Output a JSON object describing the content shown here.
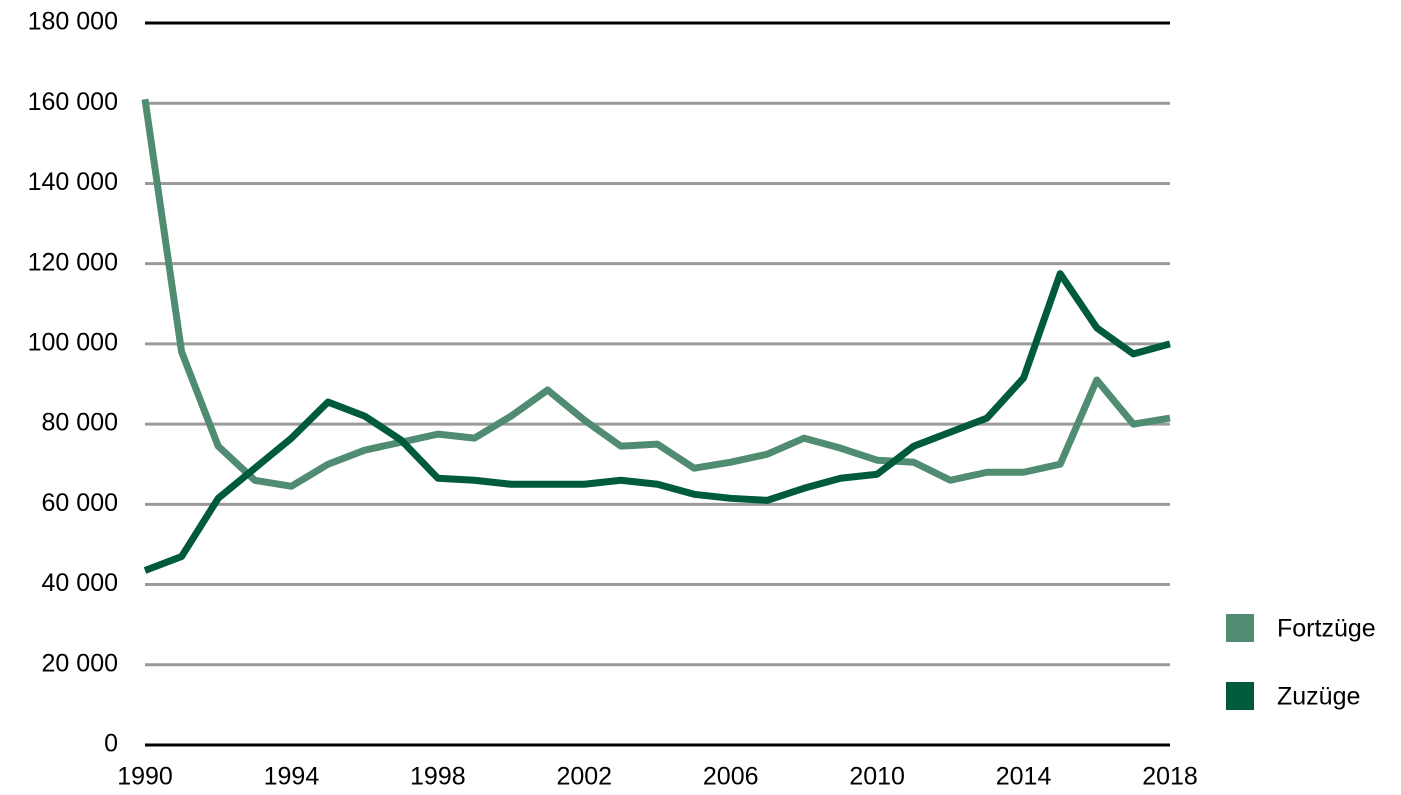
{
  "chart_data": {
    "type": "line",
    "x": [
      1990,
      1991,
      1992,
      1993,
      1994,
      1995,
      1996,
      1997,
      1998,
      1999,
      2000,
      2001,
      2002,
      2003,
      2004,
      2005,
      2006,
      2007,
      2008,
      2009,
      2010,
      2011,
      2012,
      2013,
      2014,
      2015,
      2016,
      2017,
      2018
    ],
    "series": [
      {
        "name": "Fortzüge",
        "color": "#4f8c72",
        "values": [
          161000,
          98000,
          74500,
          66000,
          64500,
          70000,
          73500,
          75500,
          77500,
          76500,
          82000,
          88500,
          81000,
          74500,
          75000,
          69000,
          70500,
          72500,
          76500,
          74000,
          71000,
          70500,
          66000,
          68000,
          68000,
          70000,
          91000,
          80000,
          81500
        ]
      },
      {
        "name": "Zuzüge",
        "color": "#005a3c",
        "values": [
          43500,
          47000,
          61500,
          69000,
          76500,
          85500,
          82000,
          76000,
          66500,
          66000,
          65000,
          65000,
          65000,
          66000,
          65000,
          62500,
          61500,
          61000,
          64000,
          66500,
          67500,
          74500,
          78000,
          81500,
          91500,
          117500,
          104000,
          97500,
          100000
        ]
      }
    ],
    "xlim": [
      1990,
      2018
    ],
    "xticks": [
      1990,
      1994,
      1998,
      2002,
      2006,
      2010,
      2014,
      2018
    ],
    "ylim": [
      0,
      180000
    ],
    "yticks": [
      0,
      {
        "value": 20000,
        "label": "20 000"
      },
      {
        "value": 40000,
        "label": "40 000"
      },
      {
        "value": 60000,
        "label": "60 000"
      },
      {
        "value": 80000,
        "label": "80 000"
      },
      {
        "value": 100000,
        "label": "100 000"
      },
      {
        "value": 120000,
        "label": "120 000"
      },
      {
        "value": 140000,
        "label": "140 000"
      },
      {
        "value": 160000,
        "label": "160 000"
      },
      {
        "value": 180000,
        "label": "180 000"
      }
    ],
    "grid": true,
    "legend": "right"
  }
}
